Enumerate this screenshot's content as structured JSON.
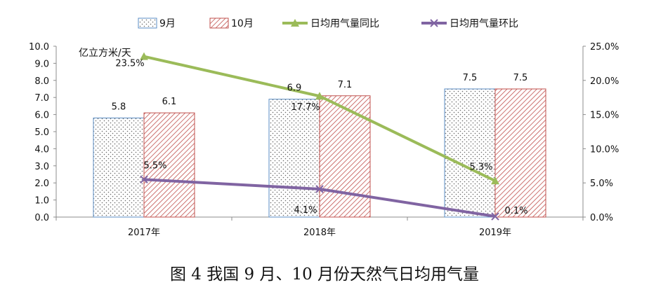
{
  "chart_data": {
    "type": "bar",
    "categories": [
      "2017年",
      "2018年",
      "2019年"
    ],
    "y_unit_label": "亿立方米/天",
    "ylim": [
      0,
      10
    ],
    "y_ticks": [
      "0.0",
      "1.0",
      "2.0",
      "3.0",
      "4.0",
      "5.0",
      "6.0",
      "7.0",
      "8.0",
      "9.0",
      "10.0"
    ],
    "y2lim": [
      0,
      25
    ],
    "y2_ticks": [
      "0.0%",
      "5.0%",
      "10.0%",
      "15.0%",
      "20.0%",
      "25.0%"
    ],
    "grid": false,
    "legend_position": "top",
    "series": [
      {
        "name": "9月",
        "kind": "bar",
        "pattern": "dots",
        "color": "#5b8ec4",
        "values": [
          5.8,
          6.9,
          7.5
        ],
        "labels": [
          "5.8",
          "6.9",
          "7.5"
        ]
      },
      {
        "name": "10月",
        "kind": "bar",
        "pattern": "hatch",
        "color": "#c0504d",
        "values": [
          6.1,
          7.1,
          7.5
        ],
        "labels": [
          "6.1",
          "7.1",
          "7.5"
        ]
      },
      {
        "name": "日均用气量同比",
        "kind": "line",
        "axis": "right",
        "marker": "triangle",
        "color": "#9bbb59",
        "values": [
          23.5,
          17.7,
          5.3
        ],
        "labels": [
          "23.5%",
          "17.7%",
          "5.3%"
        ]
      },
      {
        "name": "日均用气量环比",
        "kind": "line",
        "axis": "right",
        "marker": "x",
        "color": "#8064a2",
        "values": [
          5.5,
          4.1,
          0.1
        ],
        "labels": [
          "5.5%",
          "4.1%",
          "0.1%"
        ]
      }
    ]
  },
  "caption": "图 4 我国 9 月、10 月份天然气日均用气量"
}
